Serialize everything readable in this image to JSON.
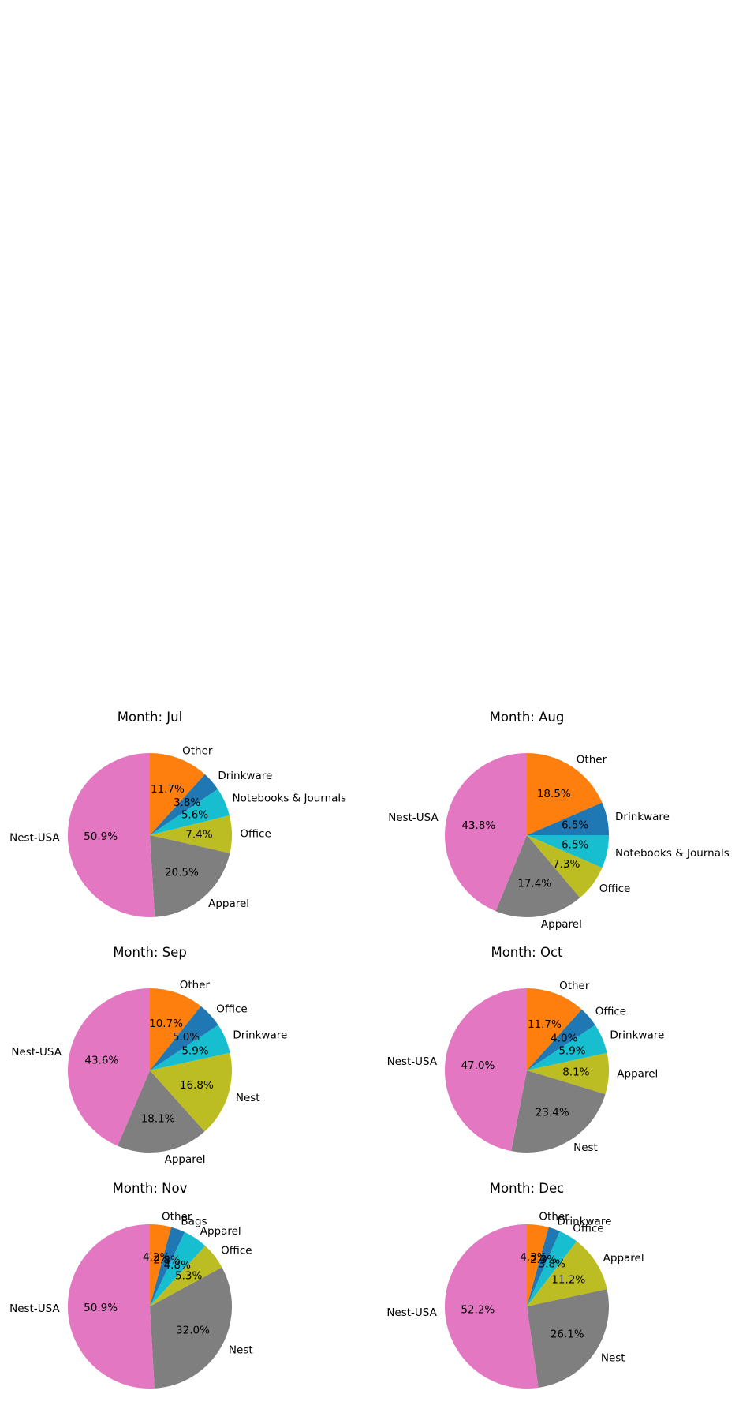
{
  "chart_data": [
    {
      "type": "pie",
      "title": "Month: Jul",
      "slices": [
        {
          "label": "Other",
          "value": 11.7,
          "pct": "11.7%",
          "color": "#ff7f0e"
        },
        {
          "label": "Drinkware",
          "value": 3.8,
          "pct": "3.8%",
          "color": "#1f77b4"
        },
        {
          "label": "Notebooks & Journals",
          "value": 5.6,
          "pct": "5.6%",
          "color": "#17becf"
        },
        {
          "label": "Office",
          "value": 7.4,
          "pct": "7.4%",
          "color": "#bcbd22"
        },
        {
          "label": "Apparel",
          "value": 20.5,
          "pct": "20.5%",
          "color": "#7f7f7f"
        },
        {
          "label": "Nest-USA",
          "value": 50.9,
          "pct": "50.9%",
          "color": "#e377c2"
        }
      ]
    },
    {
      "type": "pie",
      "title": "Month: Aug",
      "slices": [
        {
          "label": "Other",
          "value": 18.5,
          "pct": "18.5%",
          "color": "#ff7f0e"
        },
        {
          "label": "Drinkware",
          "value": 6.5,
          "pct": "6.5%",
          "color": "#1f77b4"
        },
        {
          "label": "Notebooks & Journals",
          "value": 6.5,
          "pct": "6.5%",
          "color": "#17becf"
        },
        {
          "label": "Office",
          "value": 7.3,
          "pct": "7.3%",
          "color": "#bcbd22"
        },
        {
          "label": "Apparel",
          "value": 17.4,
          "pct": "17.4%",
          "color": "#7f7f7f"
        },
        {
          "label": "Nest-USA",
          "value": 43.8,
          "pct": "43.8%",
          "color": "#e377c2"
        }
      ]
    },
    {
      "type": "pie",
      "title": "Month: Sep",
      "slices": [
        {
          "label": "Other",
          "value": 10.7,
          "pct": "10.7%",
          "color": "#ff7f0e"
        },
        {
          "label": "Office",
          "value": 5.0,
          "pct": "5.0%",
          "color": "#1f77b4"
        },
        {
          "label": "Drinkware",
          "value": 5.9,
          "pct": "5.9%",
          "color": "#17becf"
        },
        {
          "label": "Nest",
          "value": 16.8,
          "pct": "16.8%",
          "color": "#bcbd22"
        },
        {
          "label": "Apparel",
          "value": 18.1,
          "pct": "18.1%",
          "color": "#7f7f7f"
        },
        {
          "label": "Nest-USA",
          "value": 43.6,
          "pct": "43.6%",
          "color": "#e377c2"
        }
      ]
    },
    {
      "type": "pie",
      "title": "Month: Oct",
      "slices": [
        {
          "label": "Other",
          "value": 11.7,
          "pct": "11.7%",
          "color": "#ff7f0e"
        },
        {
          "label": "Office",
          "value": 4.0,
          "pct": "4.0%",
          "color": "#1f77b4"
        },
        {
          "label": "Drinkware",
          "value": 5.9,
          "pct": "5.9%",
          "color": "#17becf"
        },
        {
          "label": "Apparel",
          "value": 8.1,
          "pct": "8.1%",
          "color": "#bcbd22"
        },
        {
          "label": "Nest",
          "value": 23.4,
          "pct": "23.4%",
          "color": "#7f7f7f"
        },
        {
          "label": "Nest-USA",
          "value": 47.0,
          "pct": "47.0%",
          "color": "#e377c2"
        }
      ]
    },
    {
      "type": "pie",
      "title": "Month: Nov",
      "slices": [
        {
          "label": "Other",
          "value": 4.2,
          "pct": "4.2%",
          "color": "#ff7f0e"
        },
        {
          "label": "Bags",
          "value": 2.8,
          "pct": "2.8%",
          "color": "#1f77b4"
        },
        {
          "label": "Apparel",
          "value": 4.8,
          "pct": "4.8%",
          "color": "#17becf"
        },
        {
          "label": "Office",
          "value": 5.3,
          "pct": "5.3%",
          "color": "#bcbd22"
        },
        {
          "label": "Nest",
          "value": 32.0,
          "pct": "32.0%",
          "color": "#7f7f7f"
        },
        {
          "label": "Nest-USA",
          "value": 50.9,
          "pct": "50.9%",
          "color": "#e377c2"
        }
      ]
    },
    {
      "type": "pie",
      "title": "Month: Dec",
      "slices": [
        {
          "label": "Other",
          "value": 4.3,
          "pct": "4.3%",
          "color": "#ff7f0e"
        },
        {
          "label": "Drinkware",
          "value": 2.3,
          "pct": "2.3%",
          "color": "#1f77b4"
        },
        {
          "label": "Office",
          "value": 3.8,
          "pct": "3.8%",
          "color": "#17becf"
        },
        {
          "label": "Apparel",
          "value": 11.2,
          "pct": "11.2%",
          "color": "#bcbd22"
        },
        {
          "label": "Nest",
          "value": 26.1,
          "pct": "26.1%",
          "color": "#7f7f7f"
        },
        {
          "label": "Nest-USA",
          "value": 52.2,
          "pct": "52.2%",
          "color": "#e377c2"
        }
      ]
    }
  ]
}
